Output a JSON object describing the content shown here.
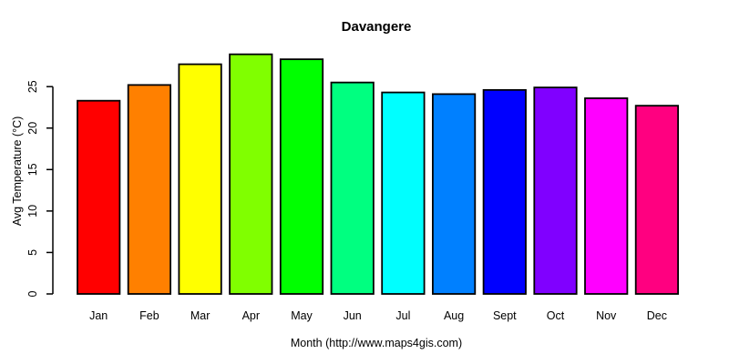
{
  "chart_data": {
    "type": "bar",
    "title": "Davangere",
    "xlabel": "Month (http://www.maps4gis.com)",
    "ylabel": "Avg Temperature (°C)",
    "categories": [
      "Jan",
      "Feb",
      "Mar",
      "Apr",
      "May",
      "Jun",
      "Jul",
      "Aug",
      "Sept",
      "Oct",
      "Nov",
      "Dec"
    ],
    "values": [
      23.3,
      25.2,
      27.7,
      28.9,
      28.3,
      25.5,
      24.3,
      24.1,
      24.6,
      24.9,
      23.6,
      22.7
    ],
    "bar_colors": [
      "#FF0000",
      "#FF8000",
      "#FFFF00",
      "#80FF00",
      "#00FF00",
      "#00FF80",
      "#00FFFF",
      "#0080FF",
      "#0000FF",
      "#8000FF",
      "#FF00FF",
      "#FF0080"
    ],
    "bar_border_color": "#000000",
    "yticks": [
      0,
      5,
      10,
      15,
      20,
      25
    ],
    "ylim": [
      0,
      29.2
    ],
    "grid": false,
    "legend": null,
    "axis_color": "#000000",
    "background_color": "#FFFFFF"
  }
}
